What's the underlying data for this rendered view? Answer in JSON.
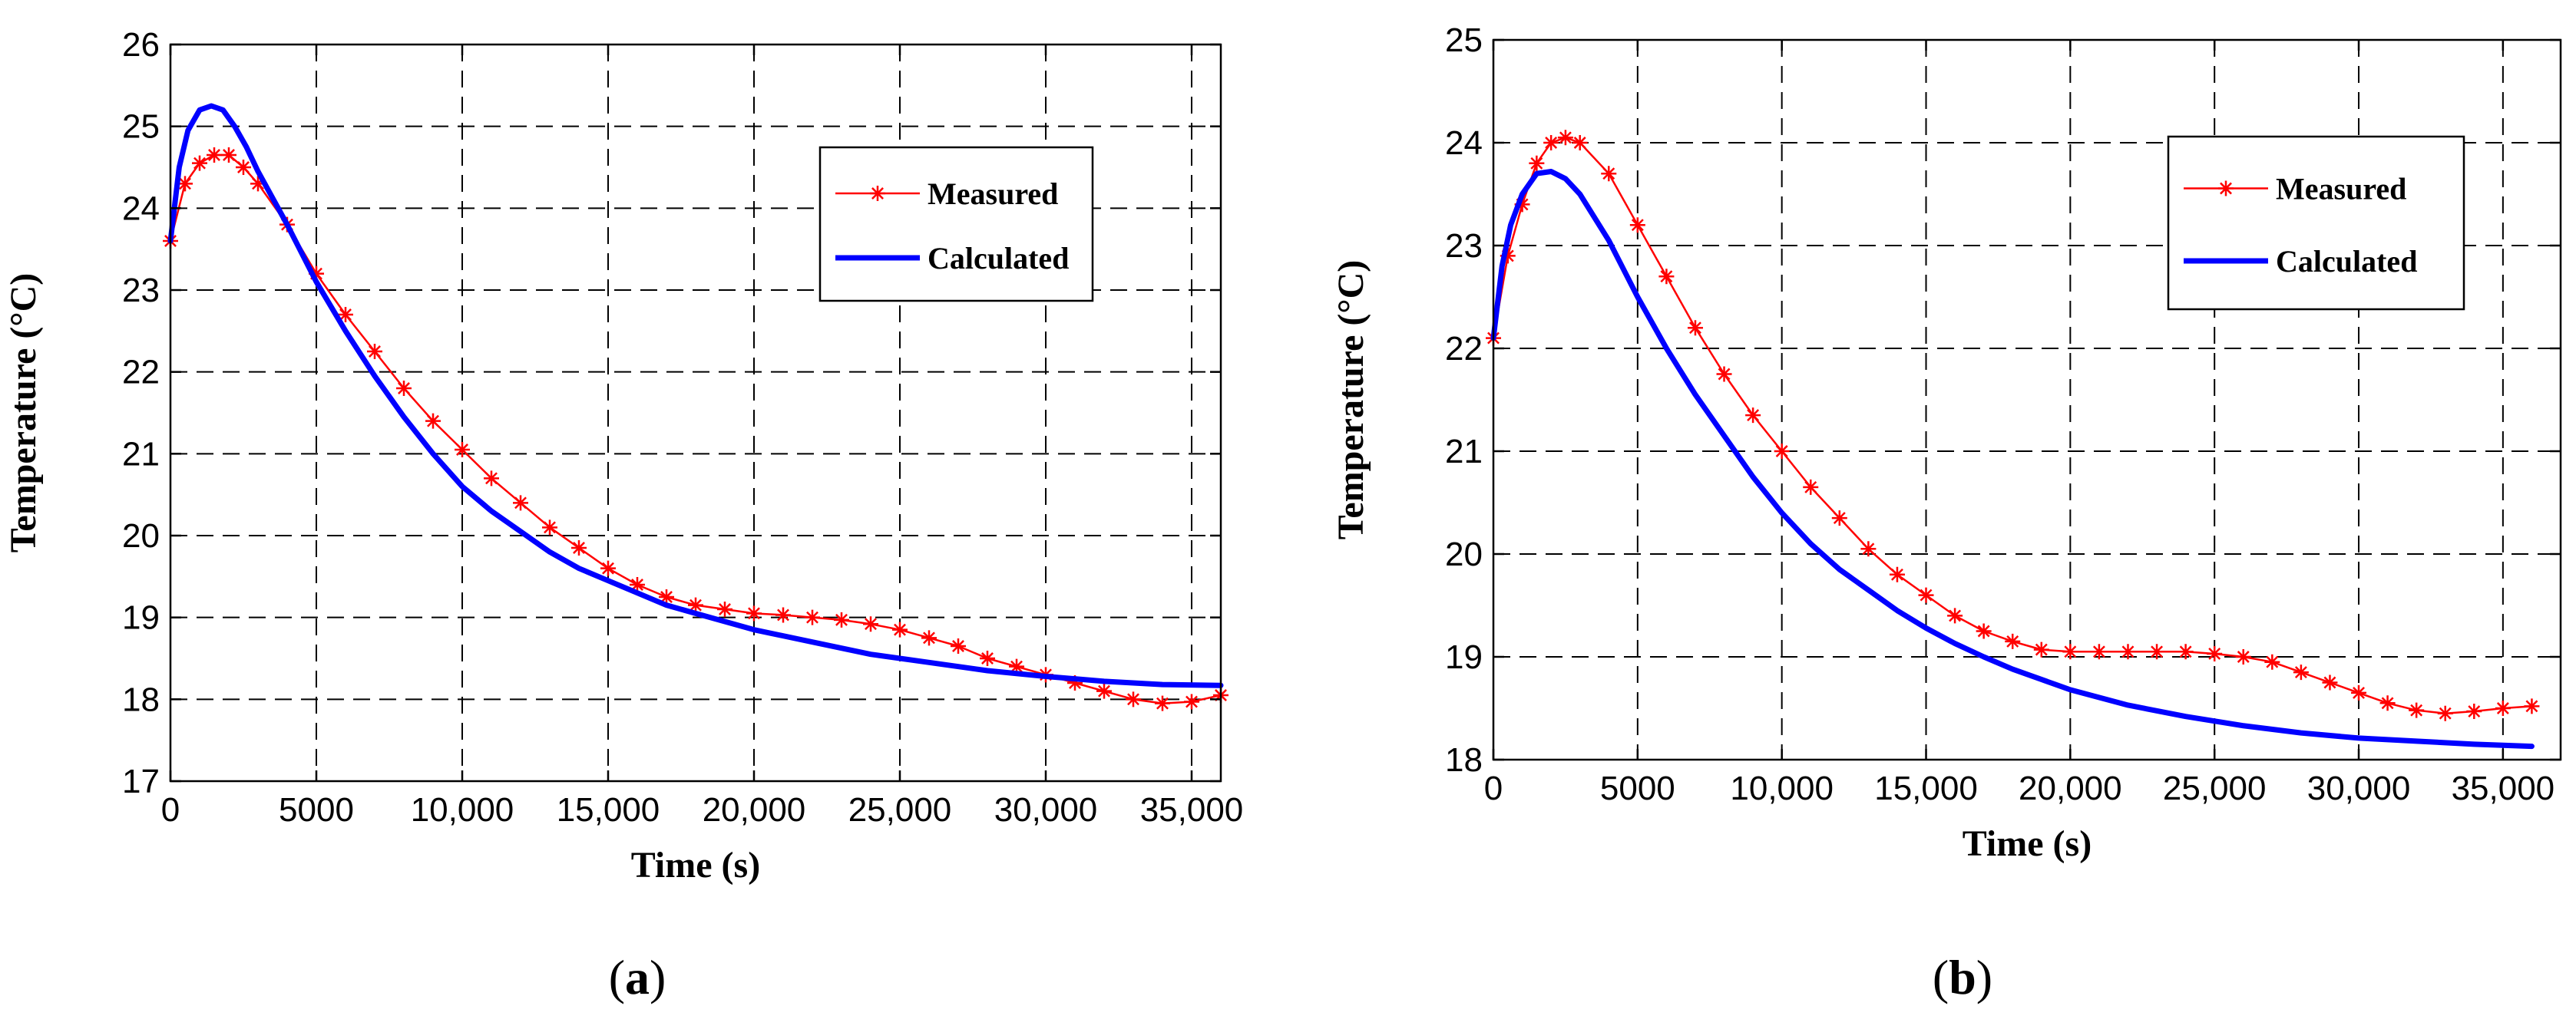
{
  "figure": {
    "panels": [
      "a",
      "b"
    ]
  },
  "chart_data": [
    {
      "type": "line",
      "panel_label": "a",
      "xlabel": "Time (s)",
      "ylabel": "Temperature (°C)",
      "xlim": [
        0,
        36000
      ],
      "ylim": [
        17,
        26
      ],
      "x_ticks": [
        0,
        5000,
        10000,
        15000,
        20000,
        25000,
        30000,
        35000
      ],
      "x_tick_labels": [
        "0",
        "5000",
        "10,000",
        "15,000",
        "20,000",
        "25,000",
        "30,000",
        "35,000"
      ],
      "y_ticks": [
        17,
        18,
        19,
        20,
        21,
        22,
        23,
        24,
        25,
        26
      ],
      "y_tick_labels": [
        "17",
        "18",
        "19",
        "20",
        "21",
        "22",
        "23",
        "24",
        "25",
        "26"
      ],
      "grid": true,
      "legend": "top-right",
      "series": [
        {
          "name": "Measured",
          "color": "#ff0000",
          "marker": "asterisk",
          "x": [
            0,
            500,
            1000,
            1500,
            2000,
            2500,
            3000,
            4000,
            5000,
            6000,
            7000,
            8000,
            9000,
            10000,
            11000,
            12000,
            13000,
            14000,
            15000,
            16000,
            17000,
            18000,
            19000,
            20000,
            21000,
            22000,
            23000,
            24000,
            25000,
            26000,
            27000,
            28000,
            29000,
            30000,
            31000,
            32000,
            33000,
            34000,
            35000,
            36000
          ],
          "y": [
            23.6,
            24.3,
            24.55,
            24.65,
            24.65,
            24.5,
            24.3,
            23.8,
            23.2,
            22.7,
            22.25,
            21.8,
            21.4,
            21.05,
            20.7,
            20.4,
            20.1,
            19.85,
            19.6,
            19.4,
            19.25,
            19.15,
            19.1,
            19.05,
            19.03,
            19.0,
            18.97,
            18.92,
            18.85,
            18.75,
            18.65,
            18.5,
            18.4,
            18.3,
            18.2,
            18.1,
            18.0,
            17.95,
            17.97,
            18.05
          ]
        },
        {
          "name": "Calculated",
          "color": "#0000ff",
          "marker": "none",
          "x": [
            0,
            300,
            600,
            1000,
            1400,
            1800,
            2200,
            2600,
            3000,
            4000,
            5000,
            6000,
            7000,
            8000,
            9000,
            10000,
            11000,
            12000,
            13000,
            14000,
            15000,
            16000,
            17000,
            18000,
            19000,
            20000,
            22000,
            24000,
            26000,
            28000,
            30000,
            32000,
            34000,
            36000
          ],
          "y": [
            23.6,
            24.5,
            24.95,
            25.2,
            25.25,
            25.2,
            25.0,
            24.75,
            24.45,
            23.8,
            23.1,
            22.5,
            21.95,
            21.45,
            21.0,
            20.6,
            20.3,
            20.05,
            19.8,
            19.6,
            19.45,
            19.3,
            19.15,
            19.05,
            18.95,
            18.85,
            18.7,
            18.55,
            18.45,
            18.35,
            18.28,
            18.22,
            18.18,
            18.17
          ]
        }
      ]
    },
    {
      "type": "line",
      "panel_label": "b",
      "xlabel": "Time (s)",
      "ylabel": "Temperature (°C)",
      "xlim": [
        0,
        37000
      ],
      "ylim": [
        18,
        25
      ],
      "x_ticks": [
        0,
        5000,
        10000,
        15000,
        20000,
        25000,
        30000,
        35000
      ],
      "x_tick_labels": [
        "0",
        "5000",
        "10,000",
        "15,000",
        "20,000",
        "25,000",
        "30,000",
        "35,000"
      ],
      "y_ticks": [
        18,
        19,
        20,
        21,
        22,
        23,
        24,
        25
      ],
      "y_tick_labels": [
        "18",
        "19",
        "20",
        "21",
        "22",
        "23",
        "24",
        "25"
      ],
      "grid": true,
      "legend": "top-right",
      "series": [
        {
          "name": "Measured",
          "color": "#ff0000",
          "marker": "asterisk",
          "x": [
            0,
            500,
            1000,
            1500,
            2000,
            2500,
            3000,
            4000,
            5000,
            6000,
            7000,
            8000,
            9000,
            10000,
            11000,
            12000,
            13000,
            14000,
            15000,
            16000,
            17000,
            18000,
            19000,
            20000,
            21000,
            22000,
            23000,
            24000,
            25000,
            26000,
            27000,
            28000,
            29000,
            30000,
            31000,
            32000,
            33000,
            34000,
            35000,
            36000
          ],
          "y": [
            22.1,
            22.9,
            23.4,
            23.8,
            24.0,
            24.05,
            24.0,
            23.7,
            23.2,
            22.7,
            22.2,
            21.75,
            21.35,
            21.0,
            20.65,
            20.35,
            20.05,
            19.8,
            19.6,
            19.4,
            19.25,
            19.15,
            19.07,
            19.05,
            19.05,
            19.05,
            19.05,
            19.05,
            19.03,
            19.0,
            18.95,
            18.85,
            18.75,
            18.65,
            18.55,
            18.48,
            18.45,
            18.47,
            18.5,
            18.52
          ]
        },
        {
          "name": "Calculated",
          "color": "#0000ff",
          "marker": "none",
          "x": [
            0,
            300,
            600,
            1000,
            1500,
            2000,
            2500,
            3000,
            4000,
            5000,
            6000,
            7000,
            8000,
            9000,
            10000,
            11000,
            12000,
            13000,
            14000,
            15000,
            16000,
            17000,
            18000,
            19000,
            20000,
            22000,
            24000,
            26000,
            28000,
            30000,
            32000,
            34000,
            36000
          ],
          "y": [
            22.1,
            22.8,
            23.2,
            23.5,
            23.7,
            23.72,
            23.65,
            23.5,
            23.05,
            22.5,
            22.0,
            21.55,
            21.15,
            20.75,
            20.4,
            20.1,
            19.85,
            19.65,
            19.45,
            19.28,
            19.13,
            19.0,
            18.88,
            18.78,
            18.68,
            18.53,
            18.42,
            18.33,
            18.26,
            18.21,
            18.18,
            18.15,
            18.13
          ]
        }
      ]
    }
  ]
}
